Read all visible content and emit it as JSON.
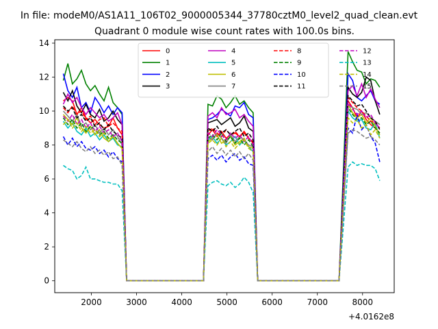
{
  "chart_data": {
    "type": "line",
    "suptitle": "In file: modeM0/AS1A11_106T02_9000005344_37780cztM0_level2_quad_clean.evt",
    "title": "Quadrant 0 module wise count rates with 100.0s bins.",
    "xlabel": "",
    "ylabel": "",
    "x_offset_label": "+4.0162e8",
    "xlim": [
      1190,
      8700
    ],
    "ylim": [
      -0.7,
      14.2
    ],
    "xticks": [
      2000,
      3000,
      4000,
      5000,
      6000,
      7000,
      8000
    ],
    "yticks": [
      0,
      2,
      4,
      6,
      8,
      10,
      12,
      14
    ],
    "grid": false,
    "legend": {
      "placement": "top-center",
      "columns": 4
    },
    "segments": [
      {
        "x_start": 1380,
        "x_end": 2680,
        "step": 100
      },
      {
        "x_start": 4580,
        "x_end": 5580,
        "step": 100
      },
      {
        "x_start": 7680,
        "x_end": 8380,
        "step": 100
      }
    ],
    "gap_x": [
      2780,
      2880,
      4480,
      5680,
      7480
    ],
    "series": [
      {
        "name": "0",
        "color": "#ff0000",
        "dash": "solid",
        "segments": [
          [
            10.6,
            10.8,
            10.6,
            9.8,
            10.2,
            9.6,
            9.3,
            9.5,
            9.2,
            9.0,
            9.1,
            9.6,
            9.0,
            8.6
          ],
          [
            8.6,
            8.9,
            8.5,
            8.8,
            8.4,
            8.6,
            8.7,
            8.5,
            8.8,
            8.4,
            8.1
          ],
          [
            10.6,
            10.2,
            9.6,
            10.0,
            9.5,
            9.2,
            9.0,
            8.7
          ]
        ]
      },
      {
        "name": "1",
        "color": "#008000",
        "dash": "solid",
        "segments": [
          [
            11.8,
            12.8,
            11.6,
            11.9,
            12.4,
            11.6,
            11.2,
            11.5,
            11.0,
            10.6,
            11.4,
            10.5,
            10.2,
            9.8
          ],
          [
            10.4,
            10.3,
            10.9,
            10.7,
            10.2,
            10.5,
            10.9,
            10.4,
            10.6,
            10.2,
            9.9
          ],
          [
            13.5,
            12.9,
            12.4,
            12.3,
            11.6,
            11.9,
            11.8,
            11.4
          ]
        ]
      },
      {
        "name": "2",
        "color": "#0000ff",
        "dash": "solid",
        "segments": [
          [
            12.2,
            11.2,
            10.8,
            11.4,
            10.2,
            10.5,
            9.9,
            10.8,
            10.4,
            9.9,
            10.3,
            9.8,
            10.2,
            9.9
          ],
          [
            9.5,
            9.6,
            9.8,
            10.1,
            9.9,
            9.7,
            10.3,
            10.2,
            10.5,
            9.8,
            9.6
          ],
          [
            12.2,
            11.8,
            10.8,
            10.6,
            10.9,
            11.2,
            10.6,
            10.4
          ]
        ]
      },
      {
        "name": "3",
        "color": "#000000",
        "dash": "solid",
        "segments": [
          [
            11.1,
            10.6,
            11.2,
            10.3,
            9.9,
            10.4,
            9.8,
            9.6,
            10.1,
            9.4,
            9.6,
            10.0,
            9.5,
            9.2
          ],
          [
            9.3,
            9.4,
            9.5,
            9.2,
            9.4,
            9.6,
            9.1,
            9.3,
            9.7,
            9.0,
            8.8
          ],
          [
            11.4,
            11.0,
            10.8,
            11.1,
            12.0,
            11.8,
            10.6,
            9.8
          ]
        ]
      },
      {
        "name": "4",
        "color": "#bf00bf",
        "dash": "solid",
        "segments": [
          [
            10.4,
            11.0,
            10.5,
            10.8,
            10.2,
            9.8,
            10.2,
            9.9,
            9.6,
            9.8,
            9.4,
            9.6,
            9.9,
            9.2
          ],
          [
            9.7,
            9.9,
            9.6,
            10.2,
            9.8,
            9.9,
            10.1,
            9.6,
            9.8,
            9.4,
            9.1
          ],
          [
            11.2,
            11.5,
            10.9,
            11.6,
            10.8,
            11.3,
            10.7,
            10.2
          ]
        ]
      },
      {
        "name": "5",
        "color": "#00bfbf",
        "dash": "solid",
        "segments": [
          [
            9.4,
            9.0,
            9.3,
            8.8,
            8.6,
            9.0,
            8.5,
            8.7,
            8.3,
            8.6,
            8.2,
            8.4,
            8.0,
            7.9
          ],
          [
            8.3,
            8.5,
            8.1,
            8.4,
            8.0,
            8.2,
            8.5,
            8.0,
            8.3,
            7.9,
            7.6
          ],
          [
            10.0,
            9.6,
            9.4,
            9.5,
            9.0,
            8.9,
            9.3,
            8.4
          ]
        ]
      },
      {
        "name": "6",
        "color": "#bfbf00",
        "dash": "solid",
        "segments": [
          [
            9.8,
            9.5,
            9.2,
            9.6,
            9.0,
            8.7,
            9.1,
            8.6,
            8.9,
            8.4,
            8.2,
            8.5,
            8.1,
            7.8
          ],
          [
            8.2,
            8.4,
            8.6,
            8.1,
            8.3,
            8.5,
            8.0,
            8.2,
            8.4,
            7.9,
            7.8
          ],
          [
            10.4,
            9.9,
            9.6,
            9.8,
            9.3,
            9.6,
            9.1,
            8.6
          ]
        ]
      },
      {
        "name": "7",
        "color": "#808080",
        "dash": "solid",
        "segments": [
          [
            10.0,
            9.7,
            9.4,
            9.8,
            9.1,
            9.3,
            8.9,
            9.2,
            8.7,
            9.0,
            8.6,
            8.9,
            8.5,
            8.0
          ],
          [
            8.5,
            8.3,
            8.7,
            8.4,
            8.1,
            8.6,
            8.2,
            8.5,
            8.3,
            8.0,
            7.9
          ],
          [
            10.4,
            10.2,
            10.1,
            9.8,
            9.9,
            9.6,
            9.4,
            9.2
          ]
        ]
      },
      {
        "name": "8",
        "color": "#ff0000",
        "dash": "dashed",
        "segments": [
          [
            10.2,
            9.9,
            10.3,
            9.8,
            10.0,
            9.5,
            9.7,
            9.2,
            9.5,
            9.6,
            9.1,
            9.3,
            9.0,
            8.8
          ],
          [
            8.8,
            9.0,
            8.7,
            8.5,
            8.9,
            8.6,
            8.8,
            8.5,
            8.7,
            8.4,
            8.2
          ],
          [
            10.8,
            10.5,
            10.2,
            10.0,
            9.7,
            9.4,
            9.3,
            9.0
          ]
        ]
      },
      {
        "name": "9",
        "color": "#008000",
        "dash": "dashed",
        "segments": [
          [
            9.6,
            9.2,
            9.5,
            9.0,
            9.3,
            8.8,
            9.1,
            8.9,
            8.6,
            8.8,
            8.4,
            8.6,
            8.3,
            8.1
          ],
          [
            8.4,
            8.6,
            8.3,
            8.7,
            8.2,
            8.5,
            8.1,
            8.4,
            8.0,
            8.3,
            7.9
          ],
          [
            10.2,
            9.8,
            9.5,
            9.6,
            9.2,
            9.4,
            9.0,
            8.7
          ]
        ]
      },
      {
        "name": "10",
        "color": "#0000ff",
        "dash": "dashed",
        "segments": [
          [
            8.5,
            8.0,
            8.4,
            7.9,
            8.2,
            7.8,
            7.7,
            7.9,
            7.5,
            7.7,
            7.3,
            7.6,
            7.2,
            7.0
          ],
          [
            7.2,
            7.4,
            7.1,
            7.4,
            7.0,
            7.3,
            7.5,
            7.1,
            7.3,
            6.9,
            6.8
          ],
          [
            9.0,
            8.7,
            9.8,
            8.9,
            9.2,
            8.5,
            8.1,
            7.0
          ]
        ]
      },
      {
        "name": "11",
        "color": "#000000",
        "dash": "dashed",
        "segments": [
          [
            10.3,
            10.0,
            10.2,
            9.6,
            9.8,
            9.4,
            9.6,
            9.1,
            9.3,
            8.9,
            9.2,
            8.8,
            8.6,
            8.4
          ],
          [
            9.0,
            8.8,
            9.1,
            8.7,
            8.9,
            8.6,
            8.8,
            9.0,
            8.5,
            8.7,
            8.3
          ],
          [
            10.9,
            10.6,
            10.3,
            10.4,
            10.0,
            9.6,
            9.4,
            8.9
          ]
        ]
      },
      {
        "name": "12",
        "color": "#bf00bf",
        "dash": "dashed",
        "segments": [
          [
            9.7,
            9.4,
            9.8,
            9.2,
            9.5,
            9.0,
            9.3,
            8.8,
            9.1,
            8.7,
            8.9,
            8.5,
            8.7,
            8.2
          ],
          [
            8.7,
            8.5,
            8.9,
            8.6,
            8.3,
            8.7,
            8.4,
            8.6,
            8.2,
            8.5,
            8.0
          ],
          [
            10.5,
            10.1,
            9.8,
            10.0,
            9.6,
            9.8,
            9.3,
            9.0
          ]
        ]
      },
      {
        "name": "13",
        "color": "#00bfbf",
        "dash": "dashed",
        "segments": [
          [
            6.8,
            6.6,
            6.5,
            6.0,
            6.2,
            6.7,
            6.0,
            6.0,
            5.9,
            5.8,
            5.8,
            5.7,
            5.7,
            5.3
          ],
          [
            5.6,
            5.8,
            5.9,
            5.7,
            5.6,
            5.8,
            5.5,
            5.7,
            6.1,
            5.8,
            5.2
          ],
          [
            6.7,
            7.0,
            6.8,
            6.9,
            6.8,
            6.8,
            6.6,
            5.9
          ]
        ]
      },
      {
        "name": "14",
        "color": "#bfbf00",
        "dash": "dashed",
        "segments": [
          [
            9.2,
            9.5,
            9.0,
            9.3,
            8.8,
            9.1,
            8.7,
            8.9,
            8.5,
            8.7,
            8.3,
            8.5,
            8.1,
            7.8
          ],
          [
            8.1,
            8.3,
            8.0,
            8.4,
            7.9,
            8.2,
            7.8,
            8.1,
            8.3,
            7.8,
            7.6
          ],
          [
            9.6,
            9.3,
            9.5,
            9.0,
            9.2,
            8.6,
            8.9,
            8.4
          ]
        ]
      },
      {
        "name": "15",
        "color": "#808080",
        "dash": "dashed",
        "segments": [
          [
            8.3,
            8.1,
            7.9,
            8.2,
            7.8,
            7.6,
            7.9,
            7.5,
            7.7,
            7.4,
            7.6,
            7.2,
            7.3,
            6.8
          ],
          [
            7.6,
            7.9,
            7.5,
            7.8,
            7.4,
            7.7,
            7.3,
            7.6,
            7.2,
            7.5,
            7.1
          ],
          [
            8.7,
            8.9,
            8.8,
            8.6,
            8.4,
            8.5,
            8.3,
            8.0
          ]
        ]
      }
    ]
  }
}
